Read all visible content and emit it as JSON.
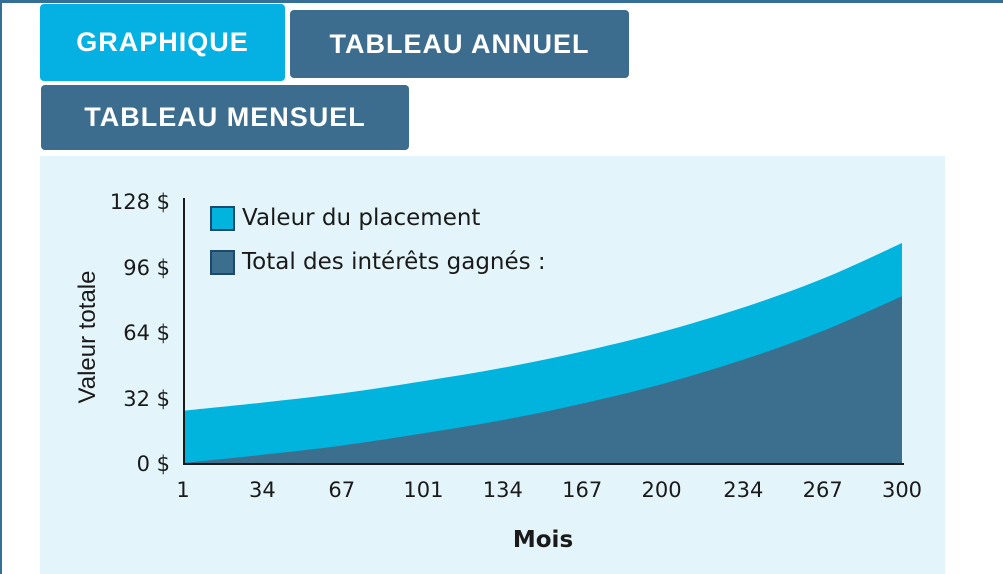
{
  "tabs": [
    {
      "id": "graphique",
      "label": "GRAPHIQUE",
      "active": true
    },
    {
      "id": "tableau-annuel",
      "label": "TABLEAU ANNUEL",
      "active": false
    },
    {
      "id": "tableau-mensuel",
      "label": "TABLEAU MENSUEL",
      "active": false
    }
  ],
  "colors": {
    "accent_cyan": "#05b1e2",
    "slate_blue": "#3d6d8e",
    "panel_bg": "#e3f5fa",
    "top_bar": "#336f96",
    "axis": "#1a1a1a",
    "legend_swatch_border": "#1c4a6e",
    "text": "#1a1a1a"
  },
  "chart_data": {
    "type": "area",
    "title": "",
    "xlabel": "Mois",
    "ylabel": "Valeur totale",
    "xlim": [
      1,
      300
    ],
    "ylim": [
      0,
      130
    ],
    "grid": false,
    "legend_position": "top-left",
    "x_ticks": [
      1,
      34,
      67,
      101,
      134,
      167,
      200,
      234,
      267,
      300
    ],
    "y_ticks": [
      {
        "label": "128 $",
        "value": 128
      },
      {
        "label": "96 $",
        "value": 96
      },
      {
        "label": "64 $",
        "value": 64
      },
      {
        "label": "32 $",
        "value": 32
      },
      {
        "label": "0 $",
        "value": 0
      }
    ],
    "x": [
      1,
      34,
      67,
      101,
      134,
      167,
      200,
      234,
      267,
      300
    ],
    "series": [
      {
        "name": "Valeur du placement",
        "color": "#00b4de",
        "values": [
          26,
          30,
          34.5,
          40.5,
          47,
          55,
          64.5,
          76.5,
          90.5,
          108
        ]
      },
      {
        "name": "Total des intérêts gagnés :",
        "color": "#3c6f8e",
        "values": [
          0.5,
          4.5,
          9,
          15,
          21.5,
          29.5,
          39,
          51,
          65,
          82
        ]
      }
    ]
  }
}
